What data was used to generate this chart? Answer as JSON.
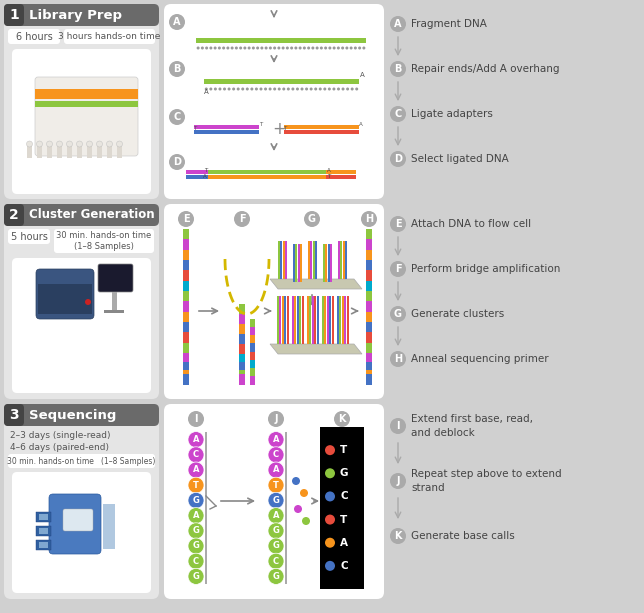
{
  "bg_color": "#d0d0d0",
  "panel_bg": "#e8e8e8",
  "white": "#ffffff",
  "header_dark": "#666666",
  "header_num": "#444444",
  "section1": {
    "number": "1",
    "title": "Library Prep",
    "time1": "6 hours",
    "time2": "3 hours hands-on time",
    "steps": [
      {
        "label": "A",
        "text": "Fragment DNA"
      },
      {
        "label": "B",
        "text": "Repair ends/Add A overhang"
      },
      {
        "label": "C",
        "text": "Ligate adapters"
      },
      {
        "label": "D",
        "text": "Select ligated DNA"
      }
    ]
  },
  "section2": {
    "number": "2",
    "title": "Cluster Generation",
    "time1": "5 hours",
    "time2": "30 min. hands-on time\n(1–8 Samples)",
    "steps": [
      {
        "label": "E",
        "text": "Attach DNA to flow cell"
      },
      {
        "label": "F",
        "text": "Perform bridge amplification"
      },
      {
        "label": "G",
        "text": "Generate clusters"
      },
      {
        "label": "H",
        "text": "Anneal sequencing primer"
      }
    ]
  },
  "section3": {
    "number": "3",
    "title": "Sequencing",
    "time1": "2–3 days (single-read)",
    "time2": "4–6 days (paired-end)",
    "time3": "30 min. hands-on time   (1–8 Samples)",
    "steps": [
      {
        "label": "I",
        "text": "Extend first base, read,\nand deblock"
      },
      {
        "label": "J",
        "text": "Repeat step above to extend\nstrand"
      },
      {
        "label": "K",
        "text": "Generate base calls"
      }
    ]
  }
}
